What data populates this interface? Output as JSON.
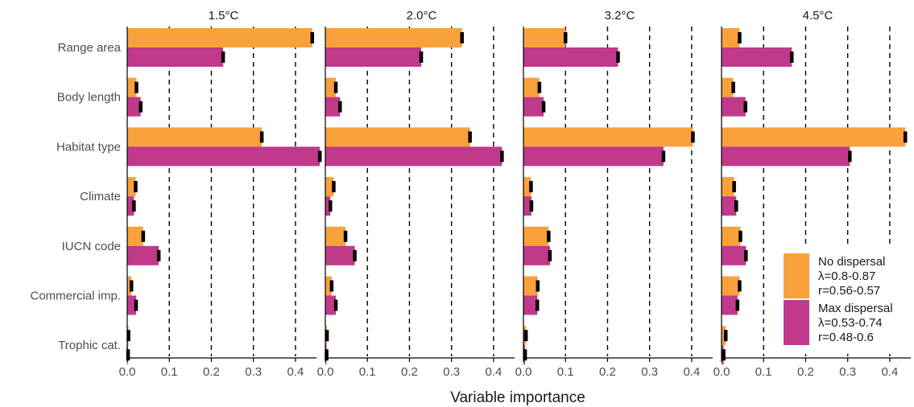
{
  "chart_data": {
    "type": "bar",
    "orientation": "horizontal",
    "xlabel": "Variable importance",
    "xlim": [
      0,
      0.45
    ],
    "xticks": [
      0.0,
      0.1,
      0.2,
      0.3,
      0.4
    ],
    "xtick_labels": [
      "0.0",
      "0.1",
      "0.2",
      "0.3",
      "0.4"
    ],
    "gridlines": "vertical dashed at 0.1, 0.2, 0.3, 0.4",
    "legend_placement": "bottom-right",
    "categories": [
      "Range area",
      "Body length",
      "Habitat type",
      "Climate",
      "IUCN code",
      "Commercial imp.",
      "Trophic cat."
    ],
    "series_styles": [
      {
        "key": "no_dispersal",
        "color": "#F9A13A"
      },
      {
        "key": "max_dispersal",
        "color": "#C0398A"
      }
    ],
    "legend": [
      {
        "color": "#F9A13A",
        "lines": [
          "No dispersal",
          "λ=0.8-0.87",
          "r=0.56-0.57"
        ]
      },
      {
        "color": "#C0398A",
        "lines": [
          "Max dispersal",
          "λ=0.53-0.74",
          "r=0.48-0.6"
        ]
      }
    ],
    "panels": [
      {
        "title": "1.5°C",
        "no_dispersal": [
          0.44,
          0.022,
          0.32,
          0.02,
          0.038,
          0.01,
          0.003
        ],
        "max_dispersal": [
          0.228,
          0.032,
          0.458,
          0.016,
          0.075,
          0.021,
          0.002
        ]
      },
      {
        "title": "2.0°C",
        "no_dispersal": [
          0.325,
          0.025,
          0.344,
          0.02,
          0.048,
          0.015,
          0.004
        ],
        "max_dispersal": [
          0.228,
          0.035,
          0.42,
          0.012,
          0.07,
          0.025,
          0.003
        ]
      },
      {
        "title": "3.2°C",
        "no_dispersal": [
          0.1,
          0.038,
          0.403,
          0.018,
          0.06,
          0.034,
          0.006
        ],
        "max_dispersal": [
          0.225,
          0.048,
          0.333,
          0.019,
          0.063,
          0.033,
          0.004
        ]
      },
      {
        "title": "4.5°C",
        "no_dispersal": [
          0.043,
          0.028,
          0.437,
          0.03,
          0.045,
          0.043,
          0.01
        ],
        "max_dispersal": [
          0.167,
          0.057,
          0.305,
          0.035,
          0.058,
          0.038,
          0.005
        ]
      }
    ]
  }
}
